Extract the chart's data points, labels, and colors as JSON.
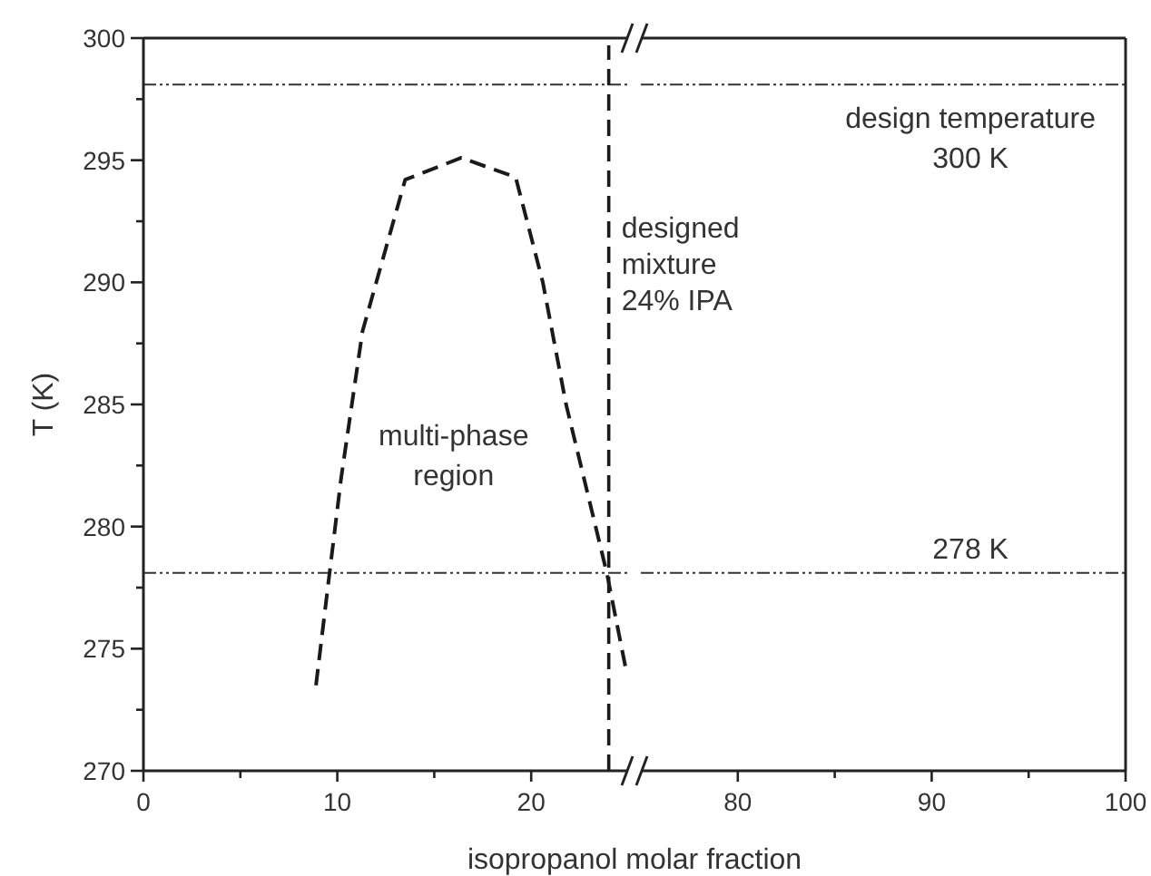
{
  "chart_data": [
    {
      "type": "line",
      "xlabel": "isopropanol molar fraction",
      "ylabel": "T (K)",
      "xlim": [
        0,
        25
      ],
      "xticks": [
        0,
        {
          "value": 5,
          "label": null
        },
        10,
        {
          "value": 15,
          "label": null
        },
        20
      ],
      "ylim": [
        270,
        300
      ],
      "yticks": [
        270,
        {
          "value": 272.5,
          "label": null
        },
        275,
        {
          "value": 277.5,
          "label": null
        },
        280,
        {
          "value": 282.5,
          "label": null
        },
        285,
        {
          "value": 287.5,
          "label": null
        },
        290,
        {
          "value": 292.5,
          "label": null
        },
        295,
        {
          "value": 297.5,
          "label": null
        },
        300
      ],
      "grid": false,
      "marker": "none",
      "line_style": "dashed",
      "series": [
        {
          "color": "#1a1a1a",
          "x": [
            8.9,
            9.6,
            10.2,
            11.3,
            13.5,
            16.4,
            19.2,
            20.6,
            21.8,
            23.9,
            24.9
          ],
          "values": [
            273.5,
            278.1,
            282,
            288,
            294.2,
            295.1,
            294.3,
            290,
            285,
            278.1,
            274.1
          ]
        }
      ],
      "ref_lines": [
        {
          "axis": "y",
          "value": 298.1,
          "line_style": "dotted",
          "color": "#333333"
        },
        {
          "axis": "y",
          "value": 278.1,
          "line_style": "dotted",
          "color": "#333333"
        },
        {
          "axis": "x",
          "value": 24,
          "label": "designed\nmixture\n24% IPA",
          "line_style": "dashed",
          "color": "#1a1a1a"
        }
      ],
      "annotations": [
        "multi-phase\nregion"
      ]
    },
    {
      "type": "line",
      "xlim": [
        75,
        100
      ],
      "xticks": [
        80,
        {
          "value": 85,
          "label": null
        },
        90,
        {
          "value": 95,
          "label": null
        },
        100
      ],
      "ylim": [
        270,
        300
      ],
      "tick_labels": "x",
      "grid": false,
      "ref_lines": [
        {
          "axis": "y",
          "value": 298.1,
          "label": "design temperature\n300 K",
          "line_style": "dotted",
          "color": "#333333"
        },
        {
          "axis": "y",
          "value": 278.1,
          "label": "278 K",
          "line_style": "dotted",
          "color": "#333333"
        }
      ]
    }
  ]
}
